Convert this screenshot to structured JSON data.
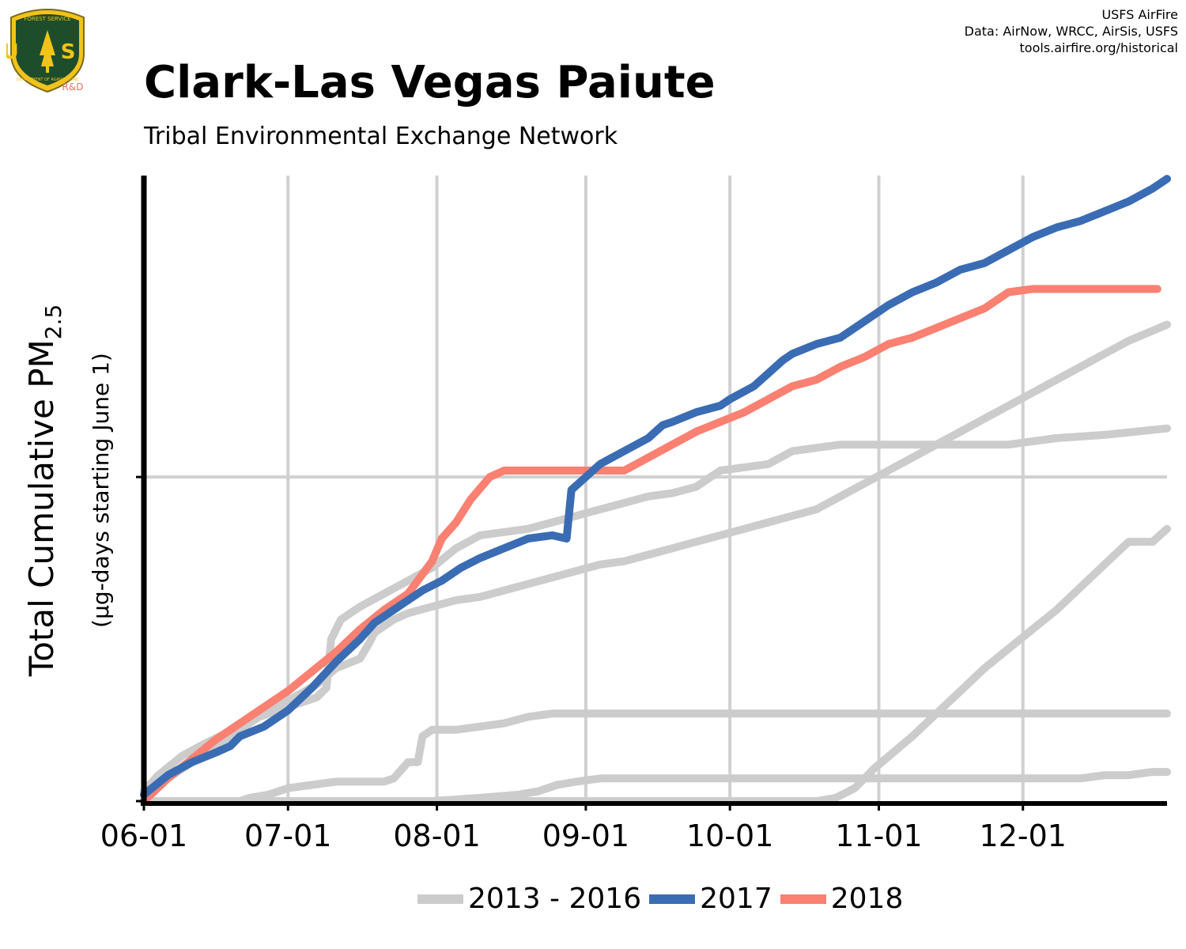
{
  "header": {
    "title": "Clark-Las Vegas Paiute",
    "subtitle": "Tribal Environmental Exchange Network",
    "credits": [
      "USFS AirFire",
      "Data: AirNow, WRCC, AirSis, USFS",
      "tools.airfire.org/historical"
    ],
    "logo_text": {
      "top": "FOREST SERVICE",
      "letters": "U S",
      "bottom": "DEPARTMENT OF AGRICULTURE",
      "badge": "R&D"
    }
  },
  "colors": {
    "history": "#cccccc",
    "y2017": "#3a6cb4",
    "y2018": "#fa8072",
    "logo_green": "#1e4d2b",
    "logo_gold": "#f2c318",
    "badge": "#f07060"
  },
  "chart_data": {
    "type": "line",
    "title": "Clark-Las Vegas Paiute",
    "subtitle": "Tribal Environmental Exchange Network",
    "ylabel_main": "Total Cumulative PM",
    "ylabel_sub": "2.5",
    "ylabel_note": "(µg-days starting June 1)",
    "x_tick_labels": [
      "06-01",
      "07-01",
      "08-01",
      "09-01",
      "10-01",
      "11-01",
      "12-01"
    ],
    "x_tick_days": [
      0,
      30,
      61,
      92,
      122,
      153,
      183
    ],
    "xlim": [
      0,
      213
    ],
    "ylim": [
      0,
      1.93
    ],
    "y_gridlines": [
      1
    ],
    "grid": true,
    "legend": {
      "placement": "bottom-center",
      "entries": [
        "2013 - 2016",
        "2017",
        "2018"
      ]
    },
    "series": [
      {
        "group": "history",
        "x": [
          0,
          3,
          8,
          13,
          20,
          23,
          30,
          36,
          40,
          45,
          47,
          48,
          50,
          52,
          55,
          60,
          65,
          70,
          75,
          80,
          85,
          90,
          95,
          100,
          105,
          110,
          115,
          120,
          125,
          130,
          135,
          140,
          145,
          150,
          155,
          160,
          165,
          170,
          175,
          180,
          185,
          190,
          195,
          200,
          205,
          213
        ],
        "y": [
          0.03,
          0.08,
          0.14,
          0.18,
          0.23,
          0.26,
          0.31,
          0.36,
          0.41,
          0.44,
          0.49,
          0.52,
          0.54,
          0.56,
          0.58,
          0.6,
          0.62,
          0.63,
          0.65,
          0.67,
          0.69,
          0.71,
          0.73,
          0.74,
          0.76,
          0.78,
          0.8,
          0.82,
          0.84,
          0.86,
          0.88,
          0.9,
          0.94,
          0.98,
          1.02,
          1.06,
          1.1,
          1.14,
          1.18,
          1.22,
          1.26,
          1.3,
          1.34,
          1.38,
          1.42,
          1.47
        ]
      },
      {
        "group": "history",
        "x": [
          0,
          4,
          8,
          12,
          16,
          20,
          22,
          24,
          28,
          32,
          36,
          38,
          39,
          41,
          45,
          50,
          55,
          60,
          65,
          70,
          75,
          80,
          85,
          90,
          95,
          100,
          105,
          110,
          115,
          120,
          125,
          130,
          135,
          140,
          145,
          150,
          155,
          160,
          165,
          170,
          175,
          180,
          185,
          190,
          200,
          213
        ],
        "y": [
          0.02,
          0.06,
          0.1,
          0.14,
          0.18,
          0.22,
          0.24,
          0.26,
          0.28,
          0.3,
          0.32,
          0.35,
          0.5,
          0.56,
          0.6,
          0.64,
          0.68,
          0.72,
          0.78,
          0.82,
          0.83,
          0.84,
          0.86,
          0.88,
          0.9,
          0.92,
          0.94,
          0.95,
          0.97,
          1.02,
          1.03,
          1.04,
          1.08,
          1.09,
          1.1,
          1.1,
          1.1,
          1.1,
          1.1,
          1.1,
          1.1,
          1.1,
          1.11,
          1.12,
          1.13,
          1.15
        ]
      },
      {
        "group": "history",
        "x": [
          0,
          20,
          22,
          26,
          30,
          35,
          40,
          45,
          50,
          52,
          55,
          57,
          58,
          60,
          65,
          70,
          75,
          80,
          85,
          90,
          95,
          100,
          105,
          110,
          115,
          120,
          125,
          130,
          135,
          140,
          145,
          150,
          155,
          160,
          165,
          170,
          175,
          180,
          185,
          190,
          195,
          200,
          205,
          210,
          213
        ],
        "y": [
          0.0,
          0.0,
          0.01,
          0.02,
          0.04,
          0.05,
          0.06,
          0.06,
          0.06,
          0.07,
          0.12,
          0.12,
          0.2,
          0.22,
          0.22,
          0.23,
          0.24,
          0.26,
          0.27,
          0.27,
          0.27,
          0.27,
          0.27,
          0.27,
          0.27,
          0.27,
          0.27,
          0.27,
          0.27,
          0.27,
          0.27,
          0.27,
          0.27,
          0.27,
          0.27,
          0.27,
          0.27,
          0.27,
          0.27,
          0.27,
          0.27,
          0.27,
          0.27,
          0.27,
          0.27
        ]
      },
      {
        "group": "history",
        "x": [
          0,
          20,
          40,
          60,
          70,
          78,
          82,
          86,
          90,
          95,
          100,
          105,
          110,
          115,
          120,
          125,
          130,
          135,
          140,
          145,
          150,
          155,
          160,
          165,
          170,
          175,
          180,
          185,
          190,
          195,
          200,
          205,
          210,
          213
        ],
        "y": [
          0.0,
          0.0,
          0.0,
          0.0,
          0.01,
          0.02,
          0.03,
          0.05,
          0.06,
          0.07,
          0.07,
          0.07,
          0.07,
          0.07,
          0.07,
          0.07,
          0.07,
          0.07,
          0.07,
          0.07,
          0.07,
          0.07,
          0.07,
          0.07,
          0.07,
          0.07,
          0.07,
          0.07,
          0.07,
          0.07,
          0.08,
          0.08,
          0.09,
          0.09
        ]
      },
      {
        "group": "history",
        "x": [
          0,
          100,
          140,
          144,
          148,
          152,
          156,
          160,
          165,
          170,
          175,
          180,
          185,
          190,
          195,
          200,
          205,
          210,
          213
        ],
        "y": [
          0.0,
          0.0,
          0.0,
          0.01,
          0.04,
          0.1,
          0.15,
          0.2,
          0.27,
          0.34,
          0.41,
          0.47,
          0.53,
          0.59,
          0.66,
          0.73,
          0.8,
          0.8,
          0.84
        ]
      },
      {
        "name": "2017",
        "group": "2017",
        "x": [
          0,
          5,
          10,
          15,
          18,
          20,
          25,
          30,
          35,
          40,
          45,
          48,
          52,
          55,
          58,
          62,
          66,
          70,
          75,
          80,
          85,
          88,
          89,
          92,
          95,
          100,
          105,
          108,
          110,
          115,
          120,
          122,
          127,
          130,
          133,
          135,
          140,
          145,
          150,
          155,
          160,
          165,
          170,
          175,
          180,
          185,
          190,
          195,
          200,
          205,
          210,
          213
        ],
        "y": [
          0.02,
          0.08,
          0.12,
          0.15,
          0.17,
          0.2,
          0.23,
          0.28,
          0.35,
          0.43,
          0.5,
          0.55,
          0.59,
          0.62,
          0.65,
          0.68,
          0.72,
          0.75,
          0.78,
          0.81,
          0.82,
          0.81,
          0.96,
          1.0,
          1.04,
          1.08,
          1.12,
          1.16,
          1.17,
          1.2,
          1.22,
          1.24,
          1.28,
          1.32,
          1.36,
          1.38,
          1.41,
          1.43,
          1.48,
          1.53,
          1.57,
          1.6,
          1.64,
          1.66,
          1.7,
          1.74,
          1.77,
          1.79,
          1.82,
          1.85,
          1.89,
          1.92
        ]
      },
      {
        "name": "2018",
        "group": "2018",
        "x": [
          0,
          5,
          10,
          15,
          20,
          25,
          30,
          35,
          40,
          45,
          50,
          55,
          60,
          62,
          65,
          68,
          72,
          75,
          77,
          80,
          85,
          90,
          95,
          100,
          105,
          110,
          115,
          120,
          125,
          130,
          135,
          140,
          145,
          150,
          155,
          160,
          165,
          170,
          175,
          180,
          185,
          190,
          195,
          200,
          205,
          211
        ],
        "y": [
          0.0,
          0.07,
          0.13,
          0.19,
          0.24,
          0.29,
          0.34,
          0.4,
          0.46,
          0.53,
          0.59,
          0.64,
          0.74,
          0.81,
          0.86,
          0.93,
          1.0,
          1.02,
          1.02,
          1.02,
          1.02,
          1.02,
          1.02,
          1.02,
          1.06,
          1.1,
          1.14,
          1.17,
          1.2,
          1.24,
          1.28,
          1.3,
          1.34,
          1.37,
          1.41,
          1.43,
          1.46,
          1.49,
          1.52,
          1.57,
          1.58,
          1.58,
          1.58,
          1.58,
          1.58,
          1.58
        ]
      }
    ]
  }
}
